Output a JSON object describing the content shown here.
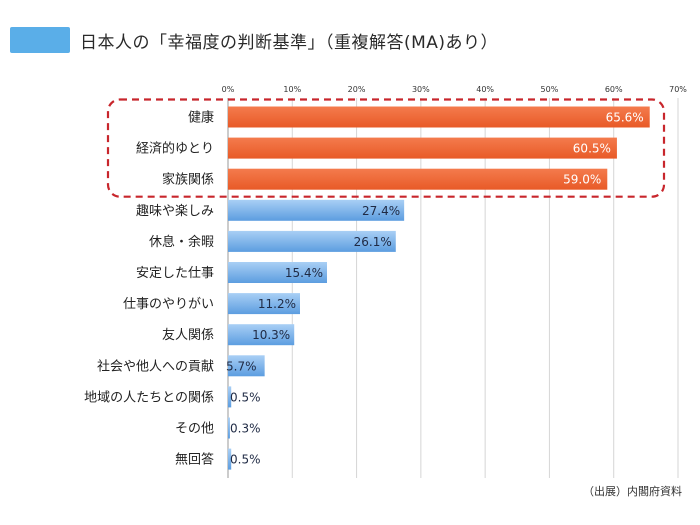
{
  "title": "日本人の「幸福度の判断基準」（重複解答(MA)あり）",
  "source": "（出展）内閣府資料",
  "colors": {
    "title_marker": "#5aaee8",
    "highlight_bar": "#ef6535",
    "normal_bar": "#7eb5ec",
    "highlight_box": "#c8262c"
  },
  "chart_data": {
    "type": "bar",
    "orientation": "horizontal",
    "title": "日本人の「幸福度の判断基準」（重複解答(MA)あり）",
    "xlim": [
      0,
      70
    ],
    "x_ticks": [
      "0%",
      "10%",
      "20%",
      "30%",
      "40%",
      "50%",
      "60%",
      "70%"
    ],
    "categories": [
      "健康",
      "経済的ゆとり",
      "家族関係",
      "趣味や楽しみ",
      "休息・余暇",
      "安定した仕事",
      "仕事のやりがい",
      "友人関係",
      "社会や他人への貢献",
      "地域の人たちとの関係",
      "その他",
      "無回答"
    ],
    "values": [
      65.6,
      60.5,
      59.0,
      27.4,
      26.1,
      15.4,
      11.2,
      10.3,
      5.7,
      0.5,
      0.3,
      0.5
    ],
    "data_labels": [
      "65.6%",
      "60.5%",
      "59.0%",
      "27.4%",
      "26.1%",
      "15.4%",
      "11.2%",
      "10.3%",
      "5.7%",
      "0.5%",
      "0.3%",
      "0.5%"
    ],
    "highlighted": [
      true,
      true,
      true,
      false,
      false,
      false,
      false,
      false,
      false,
      false,
      false,
      false
    ],
    "grid": true
  }
}
